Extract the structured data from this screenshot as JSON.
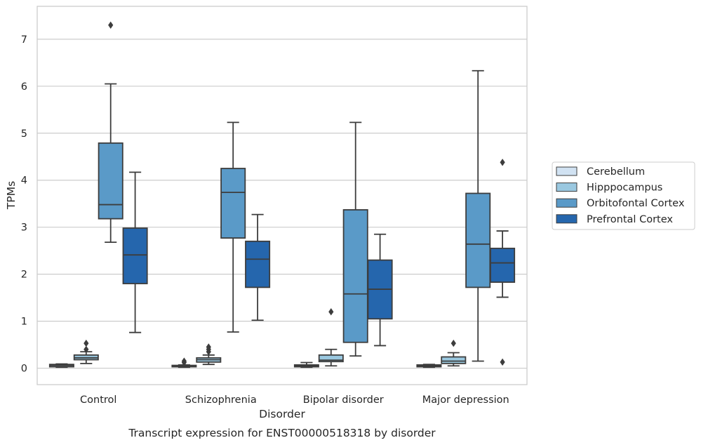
{
  "chart_data": {
    "type": "box",
    "title": "Transcript expression for ENST00000518318 by disorder",
    "xlabel": "Disorder",
    "ylabel": "TPMs",
    "ylim": [
      -0.35,
      7.7
    ],
    "yticks": [
      0,
      1,
      2,
      3,
      4,
      5,
      6,
      7
    ],
    "grid": "horizontal",
    "legend_position": "right",
    "categories": [
      "Control",
      "Schizophrenia",
      "Bipolar disorder",
      "Major depression"
    ],
    "series": [
      {
        "name": "Cerebellum",
        "color": "#d1e2f2",
        "boxes": [
          {
            "whislo": 0.02,
            "q1": 0.03,
            "med": 0.06,
            "q3": 0.08,
            "whishi": 0.09,
            "fliers": []
          },
          {
            "whislo": 0.02,
            "q1": 0.03,
            "med": 0.04,
            "q3": 0.06,
            "whishi": 0.07,
            "fliers": [
              0.12,
              0.15
            ]
          },
          {
            "whislo": 0.02,
            "q1": 0.03,
            "med": 0.05,
            "q3": 0.07,
            "whishi": 0.12,
            "fliers": []
          },
          {
            "whislo": 0.02,
            "q1": 0.03,
            "med": 0.05,
            "q3": 0.07,
            "whishi": 0.08,
            "fliers": []
          }
        ]
      },
      {
        "name": "Hipppocampus",
        "color": "#9ac8e0",
        "boxes": [
          {
            "whislo": 0.1,
            "q1": 0.18,
            "med": 0.22,
            "q3": 0.28,
            "whishi": 0.35,
            "fliers": [
              0.4,
              0.53
            ]
          },
          {
            "whislo": 0.08,
            "q1": 0.13,
            "med": 0.18,
            "q3": 0.22,
            "whishi": 0.28,
            "fliers": [
              0.35,
              0.4,
              0.45
            ]
          },
          {
            "whislo": 0.05,
            "q1": 0.14,
            "med": 0.17,
            "q3": 0.28,
            "whishi": 0.4,
            "fliers": [
              1.2
            ]
          },
          {
            "whislo": 0.05,
            "q1": 0.1,
            "med": 0.15,
            "q3": 0.24,
            "whishi": 0.33,
            "fliers": [
              0.53
            ]
          }
        ]
      },
      {
        "name": "Orbitofontal Cortex",
        "color": "#5a9ac8",
        "boxes": [
          {
            "whislo": 2.68,
            "q1": 3.18,
            "med": 3.48,
            "q3": 4.79,
            "whishi": 6.05,
            "fliers": [
              7.3
            ]
          },
          {
            "whislo": 0.77,
            "q1": 2.77,
            "med": 3.74,
            "q3": 4.25,
            "whishi": 5.23,
            "fliers": []
          },
          {
            "whislo": 0.26,
            "q1": 0.55,
            "med": 1.58,
            "q3": 3.37,
            "whishi": 5.23,
            "fliers": []
          },
          {
            "whislo": 0.15,
            "q1": 1.72,
            "med": 2.64,
            "q3": 3.72,
            "whishi": 6.33,
            "fliers": []
          }
        ]
      },
      {
        "name": "Prefrontal Cortex",
        "color": "#2566ad",
        "boxes": [
          {
            "whislo": 0.76,
            "q1": 1.8,
            "med": 2.41,
            "q3": 2.98,
            "whishi": 4.17,
            "fliers": []
          },
          {
            "whislo": 1.02,
            "q1": 1.72,
            "med": 2.32,
            "q3": 2.7,
            "whishi": 3.27,
            "fliers": []
          },
          {
            "whislo": 0.48,
            "q1": 1.05,
            "med": 1.68,
            "q3": 2.3,
            "whishi": 2.85,
            "fliers": []
          },
          {
            "whislo": 1.51,
            "q1": 1.83,
            "med": 2.24,
            "q3": 2.55,
            "whishi": 2.92,
            "fliers": [
              4.38,
              0.13
            ]
          }
        ]
      }
    ]
  }
}
